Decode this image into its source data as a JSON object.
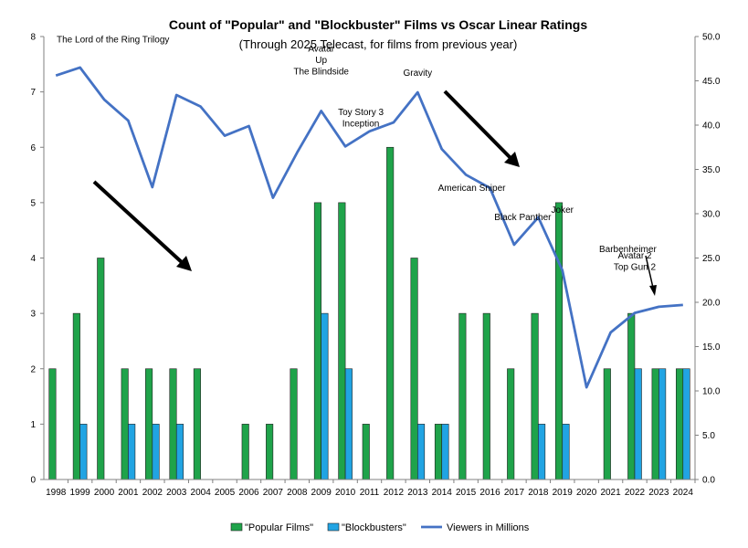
{
  "chart_data": {
    "type": "bar",
    "title": "Count of \"Popular\" and \"Blockbuster\" Films vs Oscar Linear Ratings",
    "subtitle": "(Through 2025 Telecast, for films from previous year)",
    "categories": [
      "1998",
      "1999",
      "2000",
      "2001",
      "2002",
      "2003",
      "2004",
      "2005",
      "2006",
      "2007",
      "2008",
      "2009",
      "2010",
      "2011",
      "2012",
      "2013",
      "2014",
      "2015",
      "2016",
      "2017",
      "2018",
      "2019",
      "2020",
      "2021",
      "2022",
      "2023",
      "2024"
    ],
    "series": [
      {
        "name": "\"Popular Films\"",
        "type": "bar",
        "axis": "left",
        "color": "#1fa34a",
        "values": [
          2,
          3,
          4,
          2,
          2,
          2,
          2,
          0,
          1,
          1,
          2,
          5,
          5,
          1,
          6,
          4,
          1,
          3,
          3,
          2,
          3,
          5,
          0,
          2,
          3,
          2,
          2
        ]
      },
      {
        "name": "\"Blockbusters\"",
        "type": "bar",
        "axis": "left",
        "color": "#21a4e3",
        "values": [
          0,
          1,
          0,
          1,
          1,
          1,
          0,
          0,
          0,
          0,
          0,
          3,
          2,
          0,
          0,
          1,
          1,
          0,
          0,
          0,
          1,
          1,
          0,
          0,
          2,
          2,
          2
        ]
      },
      {
        "name": "Viewers in Millions",
        "type": "line",
        "axis": "right",
        "color": "#4472c4",
        "values": [
          45.6,
          46.5,
          42.9,
          40.5,
          33.0,
          43.4,
          42.1,
          38.8,
          39.9,
          31.8,
          36.9,
          41.6,
          37.6,
          39.3,
          40.3,
          43.7,
          37.3,
          34.4,
          32.9,
          26.5,
          29.6,
          23.6,
          10.4,
          16.6,
          18.8,
          19.5,
          19.7
        ]
      }
    ],
    "yleft": {
      "min": 0,
      "max": 8,
      "ticks": [
        "0",
        "1",
        "2",
        "3",
        "4",
        "5",
        "6",
        "7",
        "8"
      ]
    },
    "yright": {
      "min": 0,
      "max": 50,
      "ticks": [
        "0.0",
        "5.0",
        "10.0",
        "15.0",
        "20.0",
        "25.0",
        "30.0",
        "35.0",
        "40.0",
        "45.0",
        "50.0"
      ]
    },
    "grid": false,
    "legend_position": "bottom",
    "annotations": [
      {
        "lines": [
          "The Lord of the Ring Trilogy"
        ],
        "year": "1998",
        "y_right": 45.6
      },
      {
        "lines": [
          "Avatar",
          "Up",
          "The Blindside"
        ],
        "year": "2009",
        "y_right": 41.6
      },
      {
        "lines": [
          "Gravity"
        ],
        "year": "2013",
        "y_right": 43.7
      },
      {
        "lines": [
          "Toy Story 3",
          "Inception"
        ],
        "year": "2010",
        "y_right": 37.6
      },
      {
        "lines": [
          "American Sniper"
        ],
        "year": "2016",
        "y_right": 32.9
      },
      {
        "lines": [
          "Black Panther"
        ],
        "year": "2018",
        "y_right": 29.6
      },
      {
        "lines": [
          "Joker"
        ],
        "year": "2019",
        "y_right": 23.6
      },
      {
        "lines": [
          "Barbenheimer"
        ],
        "year": "2023",
        "y_right": 19.5
      },
      {
        "lines": [
          "Avatar 2",
          "Top Gun 2"
        ],
        "year": "2022",
        "y_right": 18.8
      }
    ]
  }
}
